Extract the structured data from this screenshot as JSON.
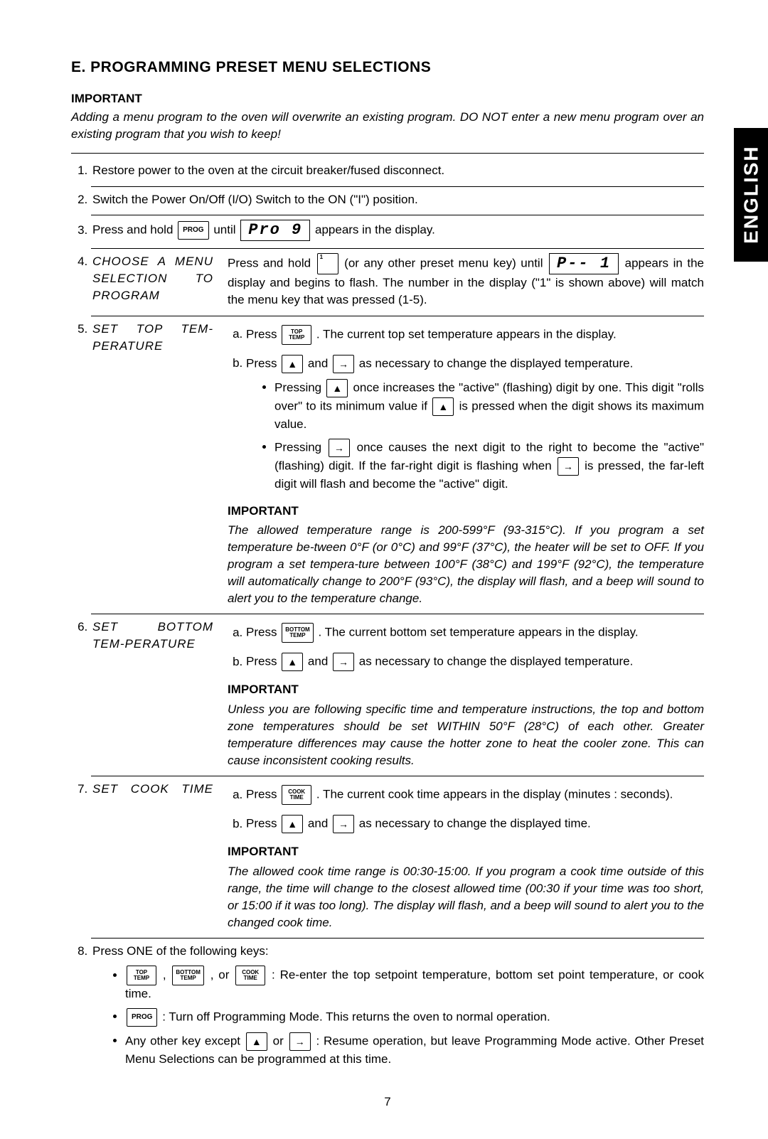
{
  "lang_tab": "ENGLISH",
  "heading": "E.  PROGRAMMING PRESET MENU SELECTIONS",
  "important_label": "IMPORTANT",
  "intro_warning": "Adding a menu program to the oven will overwrite an existing program.  DO NOT enter a new menu program over an existing program that you wish to keep!",
  "step1": "Restore power to the oven at the circuit breaker/fused disconnect.",
  "step2": "Switch the Power On/Off (I/O) Switch to the ON (\"I\") position.",
  "step3_a": "Press and hold ",
  "step3_b": " until ",
  "step3_c": " appears in the display.",
  "key_prog": "PROG",
  "disp_prog": "Pro 9",
  "step4_title": "CHOOSE A MENU SELECTION TO PROGRAM",
  "step4_a": "Press and hold ",
  "step4_b": " (or any other preset menu key) until ",
  "step4_c": " appears in the display and begins to flash.  The number in the display (\"1\" is shown above) will match the menu key that was pressed (1-5).",
  "disp_p1": "P-- 1",
  "key_num1_corner": "1",
  "step5_title": "SET TOP TEM-PERATURE",
  "step5_a_1": "Press ",
  "step5_a_2": ".  The current top set temperature appears in the display.",
  "step5_b_1": "Press ",
  "step5_b_and": " and ",
  "step5_b_2": " as necessary to change the displayed temperature.",
  "step5_bullet1_a": "Pressing ",
  "step5_bullet1_b": " once increases the \"active\" (flashing) digit by one.  This digit \"rolls over\" to its minimum value if ",
  "step5_bullet1_c": " is pressed when the digit shows its maximum value.",
  "step5_bullet2_a": "Pressing ",
  "step5_bullet2_b": " once causes the next digit to the right to become the \"active\" (flashing) digit.  If the far-right digit is flashing when ",
  "step5_bullet2_c": " is pressed, the far-left digit will flash and become the \"active\" digit.",
  "step5_important": "The allowed temperature range is 200-599°F (93-315°C).  If you program a set temperature be-tween 0°F (or 0°C) and 99°F (37°C), the heater will be set to OFF.  If you program a set tempera-ture between 100°F (38°C) and 199°F (92°C), the temperature will automatically change to 200°F (93°C), the display will flash, and a beep will sound to alert you to the temperature change.",
  "key_top_temp_1": "TOP",
  "key_top_temp_2": "TEMP",
  "key_bottom_temp_1": "BOTTOM",
  "key_bottom_temp_2": "TEMP",
  "key_cook_time_1": "COOK",
  "key_cook_time_2": "TIME",
  "step6_title": "SET BOTTOM TEM-PERATURE",
  "step6_a_1": "Press ",
  "step6_a_2": ".  The current bottom set temperature appears in the display.",
  "step6_b_1": "Press ",
  "step6_b_2": " as necessary to change the displayed temperature.",
  "step6_important": "Unless you are following specific time and temperature instructions, the top and bottom zone temperatures should be set WITHIN 50°F (28°C) of each other.  Greater temperature differences may cause the hotter zone to heat the cooler zone.  This can cause inconsistent cooking results.",
  "step7_title": "SET COOK TIME",
  "step7_a_1": "Press ",
  "step7_a_2": ".  The current cook time appears in the display (minutes : seconds).",
  "step7_b_1": "Press ",
  "step7_b_2": " as necessary to change the displayed time.",
  "step7_important": "The allowed cook time range is 00:30-15:00. If you program a cook time outside of this range, the time will change to the closest allowed time (00:30 if your time was too short, or 15:00 if it was too long).  The display will flash, and a beep will sound to alert you to the changed cook time.",
  "step8_intro": "Press ONE of the following keys:",
  "step8_b1_sep": " , ",
  "step8_b1_or": " , or ",
  "step8_b1_text": " :  Re-enter the top setpoint temperature, bottom set point temperature, or cook time.",
  "step8_b2_text": " :  Turn off Programming Mode.  This returns the oven to normal operation.",
  "step8_b3_a": "Any other key except ",
  "step8_b3_or": " or ",
  "step8_b3_b": " :  Resume operation, but leave Programming Mode active.  Other Preset Menu Selections can be programmed at this time.",
  "page_number": "7",
  "glyph_up": "▲",
  "glyph_right": "→"
}
